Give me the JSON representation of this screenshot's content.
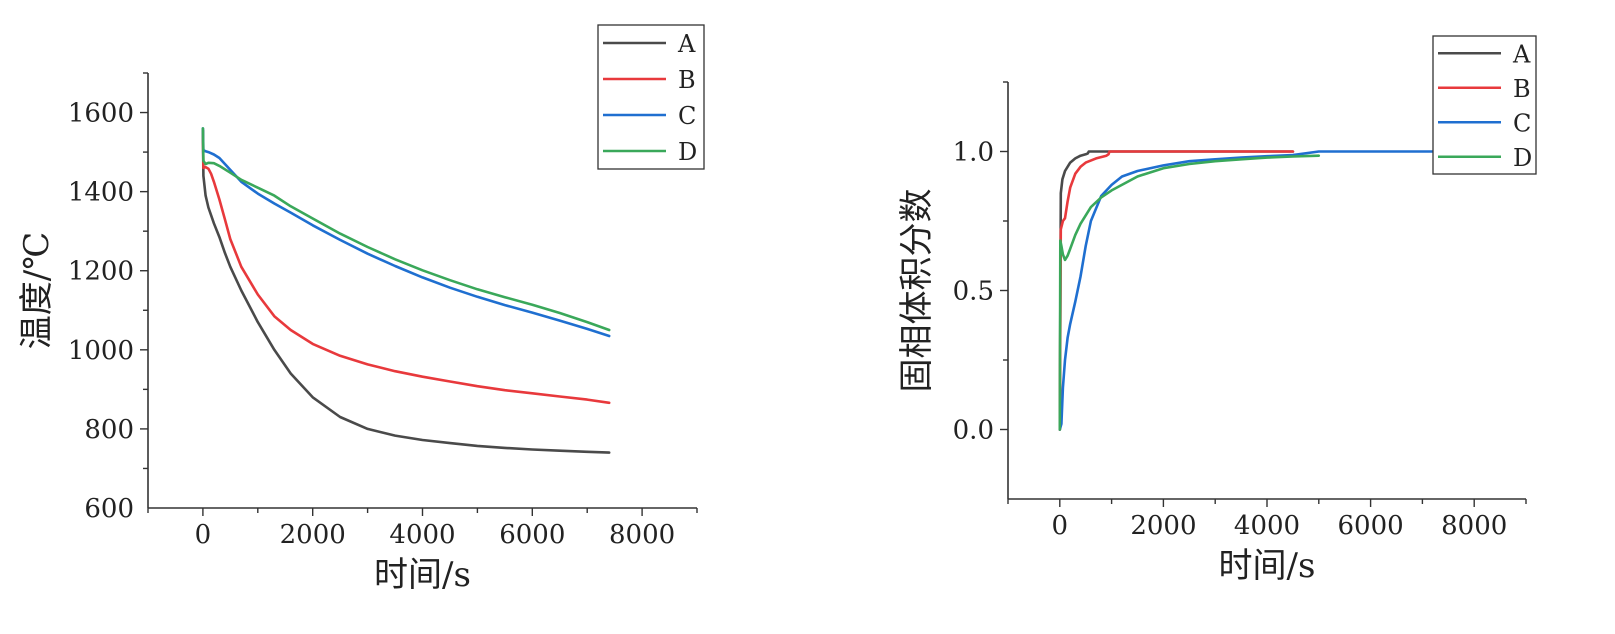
{
  "chart_data": [
    {
      "type": "line",
      "title": "",
      "xlabel": "时间/s",
      "ylabel": "温度/℃",
      "xlim": [
        -1000,
        9000
      ],
      "ylim": [
        600,
        1700
      ],
      "xticks": [
        0,
        2000,
        4000,
        6000,
        8000
      ],
      "xtick_labels": [
        "0",
        "2000",
        "4000",
        "6000",
        "8000"
      ],
      "yticks": [
        600,
        800,
        1000,
        1200,
        1400,
        1600
      ],
      "ytick_labels": [
        "600",
        "800",
        "1000",
        "1200",
        "1400",
        "1600"
      ],
      "grid": false,
      "legend_position": "top-right",
      "series": [
        {
          "name": "A",
          "color": "#4a4a4a",
          "x": [
            0,
            10,
            50,
            100,
            200,
            300,
            400,
            500,
            700,
            1000,
            1300,
            1600,
            2000,
            2500,
            3000,
            3500,
            4000,
            4500,
            5000,
            5500,
            6000,
            6500,
            7000,
            7400
          ],
          "y": [
            1555,
            1440,
            1390,
            1360,
            1320,
            1285,
            1245,
            1210,
            1150,
            1070,
            1000,
            940,
            880,
            830,
            800,
            783,
            772,
            764,
            757,
            752,
            748,
            745,
            742,
            740
          ]
        },
        {
          "name": "B",
          "color": "#e8393c",
          "x": [
            0,
            10,
            50,
            100,
            150,
            200,
            300,
            400,
            500,
            700,
            1000,
            1300,
            1600,
            2000,
            2500,
            3000,
            3500,
            4000,
            4500,
            5000,
            5500,
            6000,
            6500,
            7000,
            7400
          ],
          "y": [
            1555,
            1460,
            1462,
            1458,
            1445,
            1425,
            1380,
            1330,
            1280,
            1210,
            1140,
            1085,
            1050,
            1015,
            985,
            963,
            946,
            932,
            920,
            908,
            898,
            890,
            882,
            874,
            866
          ]
        },
        {
          "name": "C",
          "color": "#1f6fd0",
          "x": [
            0,
            10,
            50,
            100,
            200,
            300,
            500,
            700,
            1000,
            1300,
            1600,
            2000,
            2500,
            3000,
            3500,
            4000,
            4500,
            5000,
            5500,
            6000,
            6500,
            7000,
            7400
          ],
          "y": [
            1560,
            1505,
            1502,
            1500,
            1494,
            1485,
            1455,
            1425,
            1395,
            1370,
            1347,
            1315,
            1278,
            1243,
            1212,
            1183,
            1157,
            1134,
            1113,
            1094,
            1074,
            1053,
            1035
          ]
        },
        {
          "name": "D",
          "color": "#3aa85a",
          "x": [
            0,
            10,
            50,
            100,
            200,
            300,
            500,
            700,
            1000,
            1300,
            1600,
            2000,
            2500,
            3000,
            3500,
            4000,
            4500,
            5000,
            5500,
            6000,
            6500,
            7000,
            7400
          ],
          "y": [
            1560,
            1478,
            1470,
            1473,
            1472,
            1465,
            1448,
            1430,
            1410,
            1390,
            1363,
            1332,
            1294,
            1260,
            1229,
            1201,
            1176,
            1153,
            1133,
            1114,
            1093,
            1070,
            1050
          ]
        }
      ]
    },
    {
      "type": "line",
      "title": "",
      "xlabel": "时间/s",
      "ylabel": "固相体积分数",
      "xlim": [
        -1000,
        9000
      ],
      "ylim": [
        -0.25,
        1.25
      ],
      "xticks": [
        0,
        2000,
        4000,
        6000,
        8000
      ],
      "xtick_labels": [
        "0",
        "2000",
        "4000",
        "6000",
        "8000"
      ],
      "yticks": [
        0.0,
        0.5,
        1.0
      ],
      "ytick_labels": [
        "0.0",
        "0.5",
        "1.0"
      ],
      "grid": false,
      "legend_position": "top-right",
      "series": [
        {
          "name": "A",
          "color": "#4a4a4a",
          "x": [
            0,
            20,
            50,
            100,
            200,
            300,
            400,
            500,
            540,
            560,
            1000,
            2000,
            3000,
            4500
          ],
          "y": [
            0.0,
            0.85,
            0.9,
            0.93,
            0.96,
            0.975,
            0.985,
            0.99,
            0.993,
            1.0,
            1.0,
            1.0,
            1.0,
            1.0
          ]
        },
        {
          "name": "B",
          "color": "#e8393c",
          "x": [
            0,
            20,
            60,
            100,
            150,
            200,
            300,
            400,
            500,
            700,
            900,
            940,
            960,
            2000,
            3000,
            4500
          ],
          "y": [
            0.0,
            0.72,
            0.75,
            0.76,
            0.82,
            0.87,
            0.92,
            0.945,
            0.96,
            0.975,
            0.985,
            0.99,
            1.0,
            1.0,
            1.0,
            1.0
          ]
        },
        {
          "name": "C",
          "color": "#1f6fd0",
          "x": [
            0,
            30,
            60,
            100,
            150,
            200,
            300,
            400,
            500,
            600,
            800,
            1000,
            1200,
            1500,
            2000,
            2500,
            3000,
            3500,
            4000,
            4500,
            5000,
            7200
          ],
          "y": [
            0.0,
            0.02,
            0.15,
            0.25,
            0.33,
            0.38,
            0.46,
            0.55,
            0.66,
            0.75,
            0.84,
            0.88,
            0.91,
            0.93,
            0.95,
            0.965,
            0.972,
            0.978,
            0.983,
            0.987,
            1.0,
            1.0
          ]
        },
        {
          "name": "D",
          "color": "#3aa85a",
          "x": [
            0,
            10,
            30,
            60,
            100,
            150,
            200,
            300,
            400,
            500,
            600,
            800,
            1000,
            1500,
            2000,
            2500,
            3000,
            3500,
            4000,
            4500,
            5000
          ],
          "y": [
            0.0,
            0.68,
            0.66,
            0.63,
            0.61,
            0.625,
            0.65,
            0.7,
            0.74,
            0.77,
            0.8,
            0.835,
            0.86,
            0.91,
            0.94,
            0.955,
            0.965,
            0.972,
            0.978,
            0.982,
            0.985
          ]
        }
      ]
    }
  ]
}
